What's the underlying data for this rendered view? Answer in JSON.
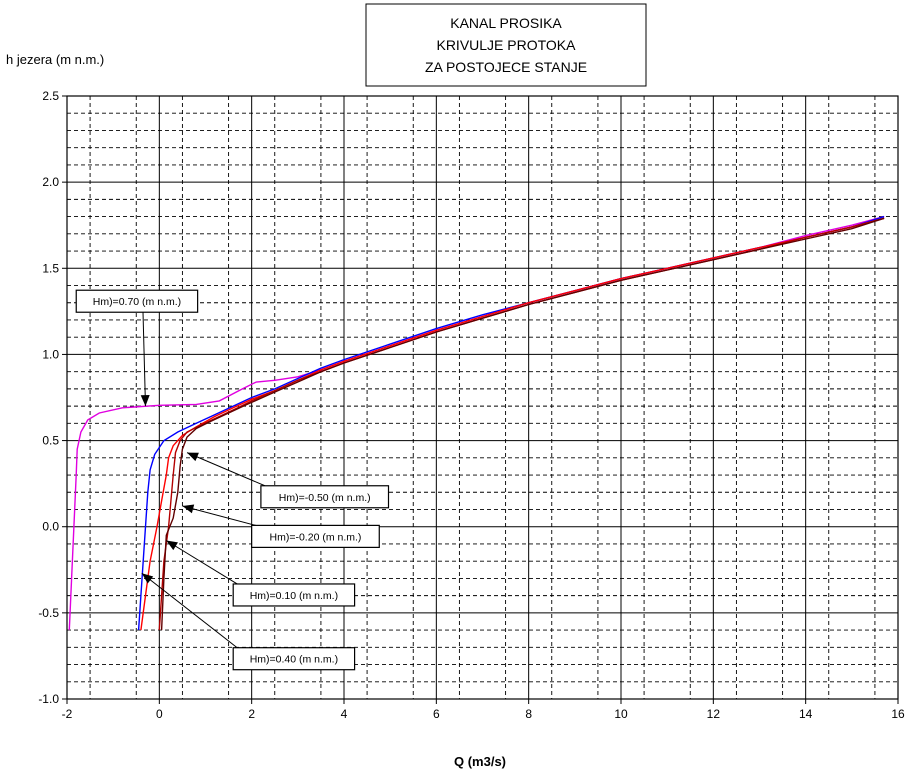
{
  "chart_data": {
    "type": "line",
    "title_lines": [
      "KANAL PROSIKA",
      "KRIVULJE PROTOKA",
      "ZA POSTOJECE STANJE"
    ],
    "xlabel": "Q (m3/s)",
    "ylabel": "h jezera (m n.m.)",
    "xlim": [
      -2,
      16
    ],
    "ylim": [
      -1.0,
      2.5
    ],
    "x_ticks": [
      -2,
      0,
      2,
      4,
      6,
      8,
      10,
      12,
      14,
      16
    ],
    "x_tick_labels": [
      "-2",
      "0",
      "2",
      "4",
      "6",
      "8",
      "10",
      "12",
      "14",
      "16"
    ],
    "y_ticks": [
      -1.0,
      -0.5,
      0.0,
      0.5,
      1.0,
      1.5,
      2.0,
      2.5
    ],
    "y_tick_labels": [
      "-1.0",
      "-0.5",
      "0.0",
      "0.5",
      "1.0",
      "1.5",
      "2.0",
      "2.5"
    ],
    "grid": {
      "major": true,
      "minor_dashed": true
    },
    "legend": "annotations",
    "series": [
      {
        "label": "Hm)=0.70 (m n.m.)",
        "color": "#e000e0",
        "points": [
          [
            -1.95,
            -0.6
          ],
          [
            -1.9,
            -0.3
          ],
          [
            -1.85,
            0.0
          ],
          [
            -1.8,
            0.3
          ],
          [
            -1.78,
            0.45
          ],
          [
            -1.7,
            0.55
          ],
          [
            -1.55,
            0.62
          ],
          [
            -1.3,
            0.66
          ],
          [
            -0.8,
            0.69
          ],
          [
            0.0,
            0.705
          ],
          [
            0.8,
            0.71
          ],
          [
            1.3,
            0.73
          ],
          [
            1.8,
            0.8
          ],
          [
            2.1,
            0.84
          ],
          [
            2.5,
            0.85
          ],
          [
            3.0,
            0.87
          ],
          [
            3.5,
            0.91
          ],
          [
            4.0,
            0.96
          ],
          [
            5.0,
            1.05
          ],
          [
            6.0,
            1.14
          ],
          [
            7.0,
            1.22
          ],
          [
            8.0,
            1.3
          ],
          [
            9.0,
            1.37
          ],
          [
            10.0,
            1.44
          ],
          [
            11.0,
            1.5
          ],
          [
            12.0,
            1.56
          ],
          [
            13.0,
            1.62
          ],
          [
            14.0,
            1.69
          ],
          [
            15.0,
            1.75
          ],
          [
            15.7,
            1.8
          ]
        ]
      },
      {
        "label": "Hm)=0.40 (m n.m.)",
        "color": "#0000ff",
        "points": [
          [
            -0.45,
            -0.6
          ],
          [
            -0.4,
            -0.4
          ],
          [
            -0.35,
            -0.2
          ],
          [
            -0.3,
            0.0
          ],
          [
            -0.25,
            0.2
          ],
          [
            -0.2,
            0.33
          ],
          [
            -0.1,
            0.42
          ],
          [
            0.1,
            0.5
          ],
          [
            0.4,
            0.55
          ],
          [
            0.8,
            0.6
          ],
          [
            1.2,
            0.65
          ],
          [
            1.6,
            0.7
          ],
          [
            2.0,
            0.75
          ],
          [
            2.5,
            0.8
          ],
          [
            3.0,
            0.86
          ],
          [
            3.5,
            0.92
          ],
          [
            4.0,
            0.97
          ],
          [
            5.0,
            1.06
          ],
          [
            6.0,
            1.15
          ],
          [
            7.0,
            1.23
          ],
          [
            8.0,
            1.3
          ],
          [
            9.0,
            1.37
          ],
          [
            10.0,
            1.44
          ],
          [
            11.0,
            1.5
          ],
          [
            12.0,
            1.56
          ],
          [
            13.0,
            1.62
          ],
          [
            14.0,
            1.68
          ],
          [
            15.0,
            1.74
          ],
          [
            15.7,
            1.8
          ]
        ]
      },
      {
        "label": "Hm)=0.10 (m n.m.)",
        "color": "#ff0000",
        "points": [
          [
            -0.4,
            -0.6
          ],
          [
            -0.3,
            -0.4
          ],
          [
            -0.2,
            -0.2
          ],
          [
            -0.05,
            0.0
          ],
          [
            0.05,
            0.15
          ],
          [
            0.15,
            0.3
          ],
          [
            0.2,
            0.4
          ],
          [
            0.3,
            0.47
          ],
          [
            0.5,
            0.53
          ],
          [
            0.8,
            0.58
          ],
          [
            1.2,
            0.64
          ],
          [
            1.6,
            0.69
          ],
          [
            2.0,
            0.74
          ],
          [
            2.5,
            0.79
          ],
          [
            3.0,
            0.85
          ],
          [
            3.5,
            0.91
          ],
          [
            4.0,
            0.96
          ],
          [
            5.0,
            1.05
          ],
          [
            6.0,
            1.14
          ],
          [
            7.0,
            1.22
          ],
          [
            8.0,
            1.3
          ],
          [
            9.0,
            1.37
          ],
          [
            10.0,
            1.44
          ],
          [
            11.0,
            1.5
          ],
          [
            12.0,
            1.56
          ],
          [
            13.0,
            1.62
          ],
          [
            14.0,
            1.68
          ],
          [
            15.0,
            1.74
          ],
          [
            15.7,
            1.79
          ]
        ]
      },
      {
        "label": "Hm)=-0.20 (m n.m.)",
        "color": "#b40000",
        "points": [
          [
            0.0,
            -0.6
          ],
          [
            0.05,
            -0.4
          ],
          [
            0.1,
            -0.2
          ],
          [
            0.2,
            0.0
          ],
          [
            0.25,
            0.15
          ],
          [
            0.3,
            0.3
          ],
          [
            0.35,
            0.43
          ],
          [
            0.45,
            0.5
          ],
          [
            0.6,
            0.55
          ],
          [
            0.9,
            0.59
          ],
          [
            1.3,
            0.64
          ],
          [
            1.7,
            0.69
          ],
          [
            2.0,
            0.73
          ],
          [
            2.5,
            0.79
          ],
          [
            3.0,
            0.85
          ],
          [
            3.5,
            0.9
          ],
          [
            4.0,
            0.95
          ],
          [
            5.0,
            1.04
          ],
          [
            6.0,
            1.13
          ],
          [
            7.0,
            1.21
          ],
          [
            8.0,
            1.29
          ],
          [
            9.0,
            1.36
          ],
          [
            10.0,
            1.43
          ],
          [
            11.0,
            1.49
          ],
          [
            12.0,
            1.55
          ],
          [
            13.0,
            1.61
          ],
          [
            14.0,
            1.68
          ],
          [
            15.0,
            1.74
          ],
          [
            15.7,
            1.79
          ]
        ]
      },
      {
        "label": "Hm)=-0.50 (m n.m.)",
        "color": "#600000",
        "points": [
          [
            0.05,
            -0.6
          ],
          [
            0.1,
            -0.3
          ],
          [
            0.15,
            -0.05
          ],
          [
            0.3,
            0.05
          ],
          [
            0.4,
            0.2
          ],
          [
            0.45,
            0.35
          ],
          [
            0.5,
            0.45
          ],
          [
            0.6,
            0.52
          ],
          [
            0.8,
            0.57
          ],
          [
            1.1,
            0.61
          ],
          [
            1.5,
            0.66
          ],
          [
            1.9,
            0.71
          ],
          [
            2.4,
            0.77
          ],
          [
            3.0,
            0.84
          ],
          [
            3.5,
            0.9
          ],
          [
            4.0,
            0.95
          ],
          [
            5.0,
            1.04
          ],
          [
            6.0,
            1.13
          ],
          [
            7.0,
            1.21
          ],
          [
            8.0,
            1.29
          ],
          [
            9.0,
            1.36
          ],
          [
            10.0,
            1.43
          ],
          [
            11.0,
            1.49
          ],
          [
            12.0,
            1.55
          ],
          [
            13.0,
            1.61
          ],
          [
            14.0,
            1.67
          ],
          [
            15.0,
            1.73
          ],
          [
            15.7,
            1.79
          ]
        ]
      }
    ],
    "annotations": [
      {
        "text": "Hm)=0.70 (m n.m.)",
        "target": [
          -0.3,
          0.7
        ],
        "box_anchor": [
          -1.8,
          1.245
        ]
      },
      {
        "text": "Hm)=-0.50 (m n.m.)",
        "target": [
          0.6,
          0.43
        ],
        "box_anchor": [
          2.2,
          0.11
        ]
      },
      {
        "text": "Hm)=-0.20 (m n.m.)",
        "target": [
          0.5,
          0.12
        ],
        "box_anchor": [
          2.0,
          -0.12
        ]
      },
      {
        "text": "Hm)=0.10 (m n.m.)",
        "target": [
          0.15,
          -0.08
        ],
        "box_anchor": [
          1.6,
          -0.46
        ]
      },
      {
        "text": "Hm)=0.40 (m n.m.)",
        "target": [
          -0.38,
          -0.27
        ],
        "box_anchor": [
          1.6,
          -0.83
        ]
      }
    ]
  }
}
